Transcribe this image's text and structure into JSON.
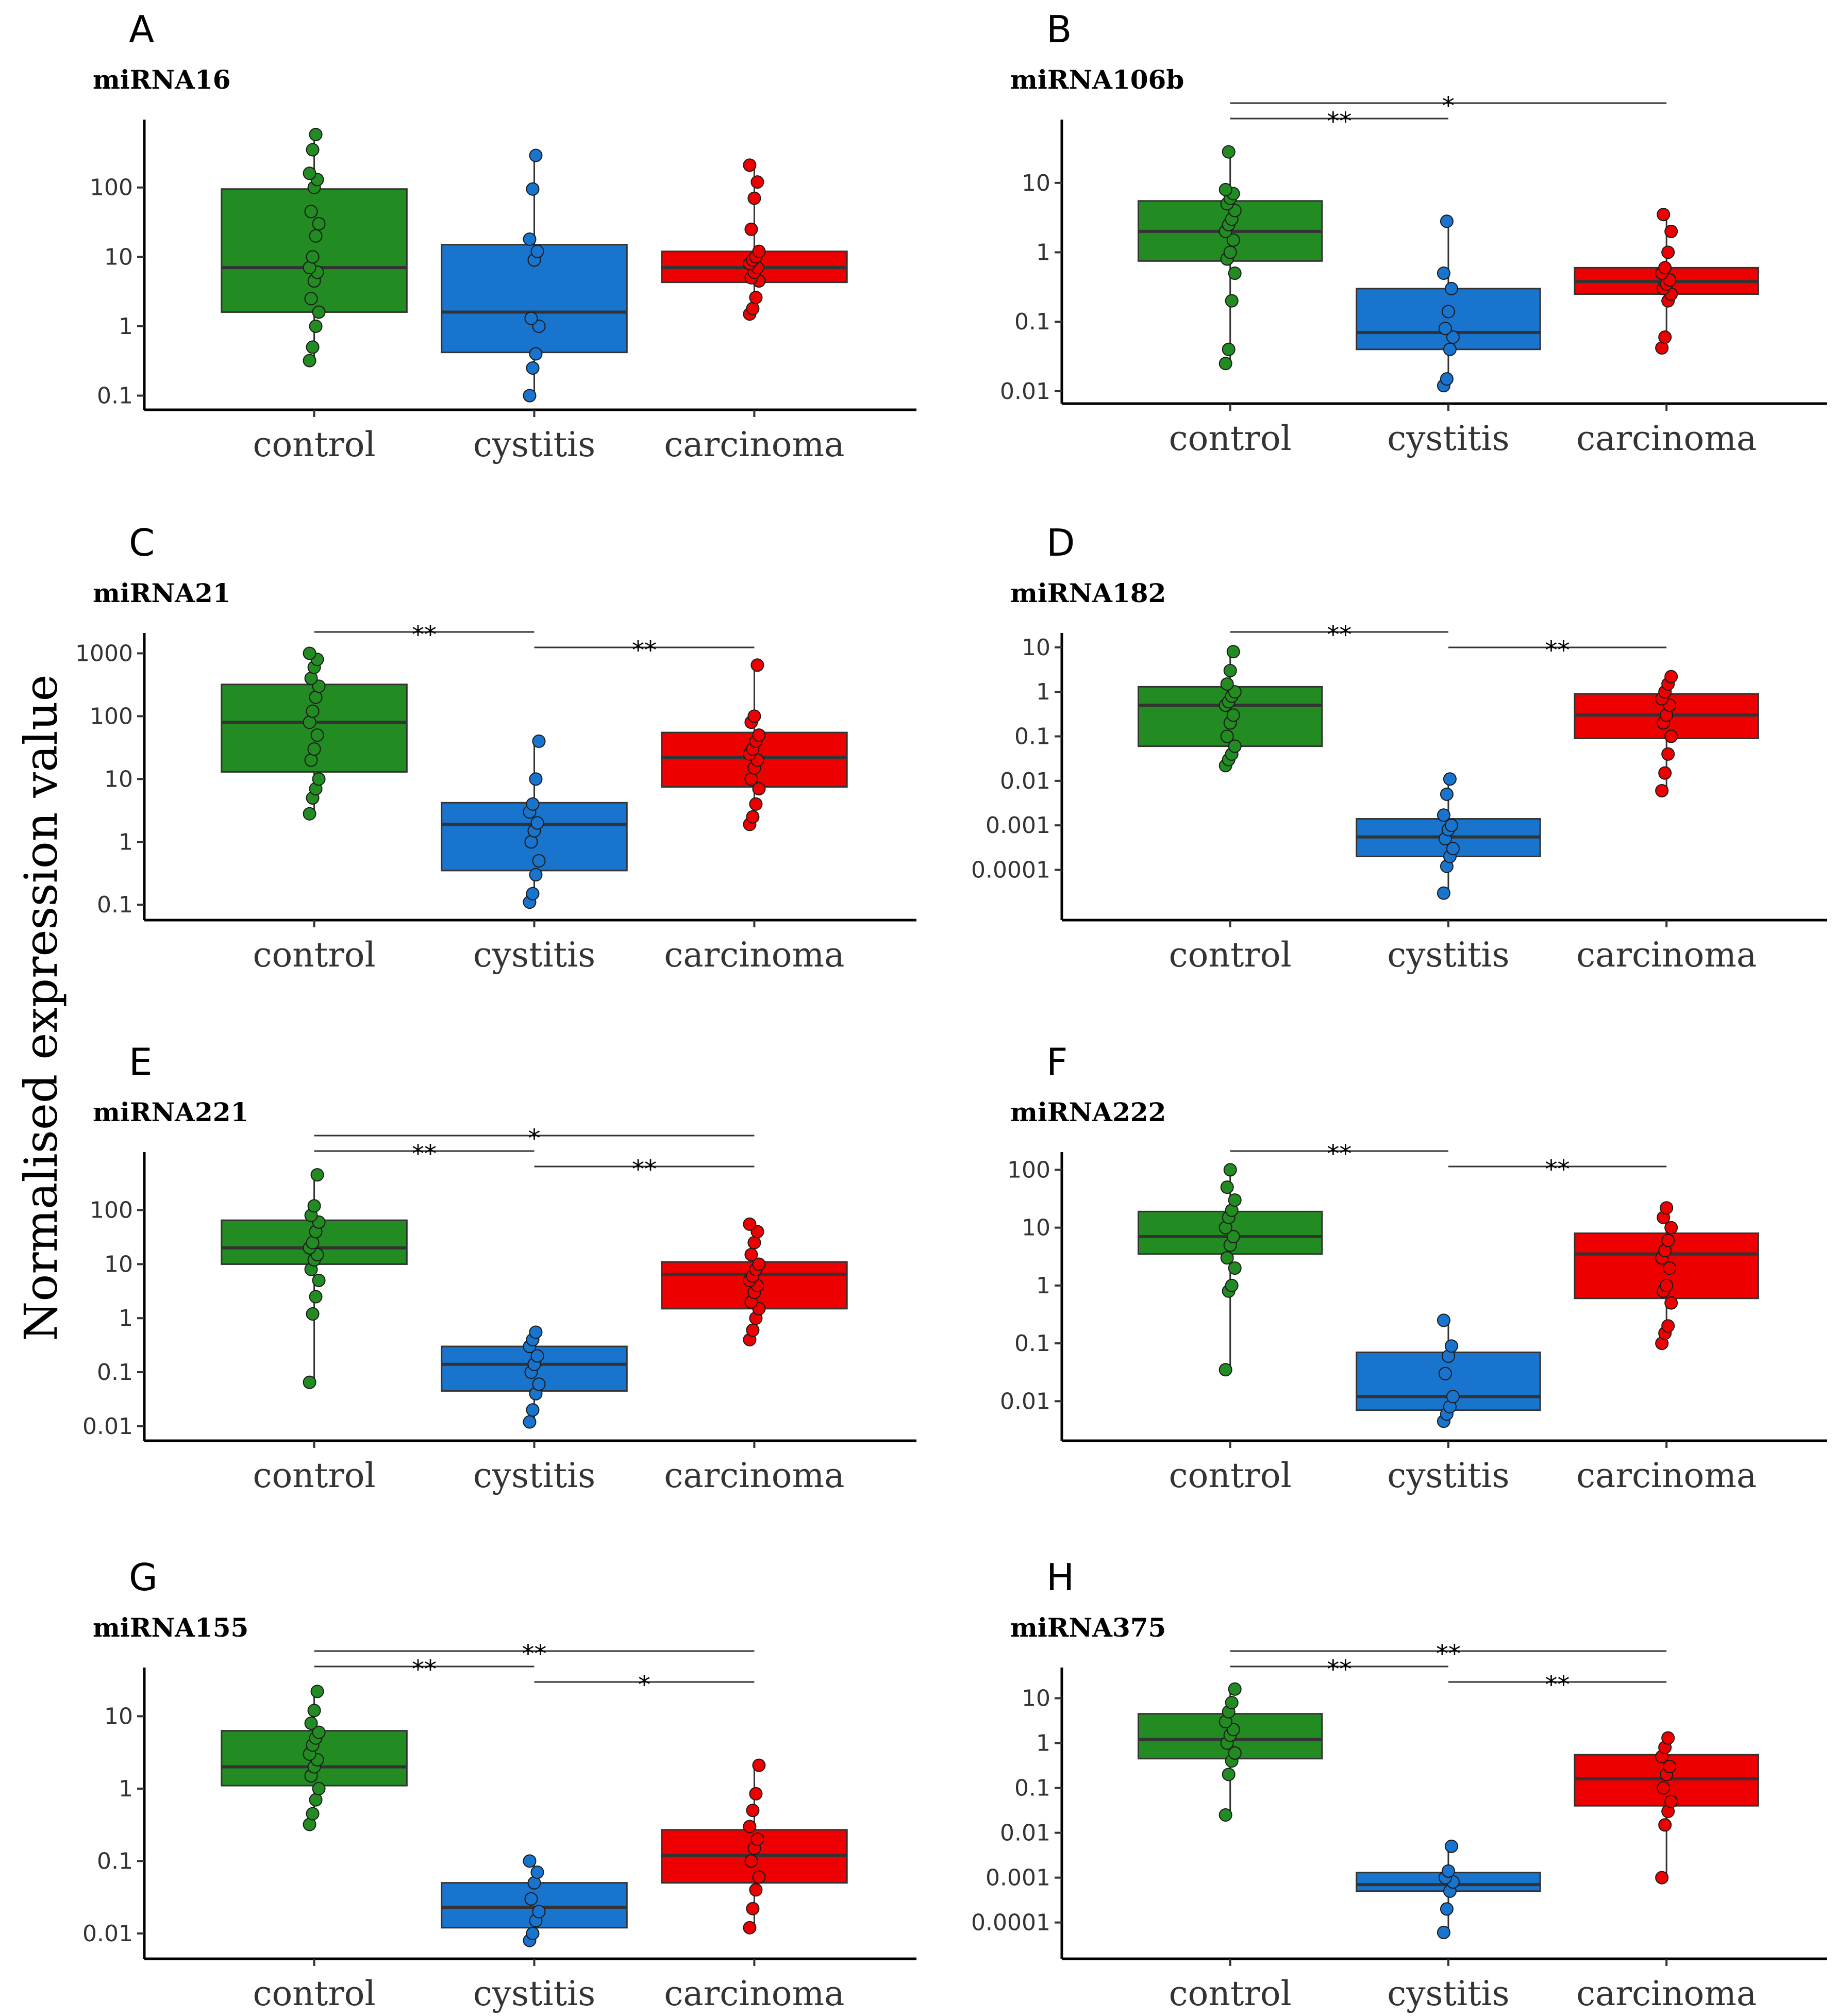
{
  "figure": {
    "ylabel": "Normalised expression value"
  },
  "colors": {
    "control": "#228B22",
    "cystitis": "#1874CD",
    "carcinoma": "#EE0000"
  },
  "chart_data": [
    {
      "panel": "A",
      "title": "miRNA16",
      "type": "box",
      "scale": "log10",
      "categories": [
        "control",
        "cystitis",
        "carcinoma"
      ],
      "yticks": [
        0.1,
        1,
        10,
        100
      ],
      "ytick_labels": [
        "0.1",
        "1",
        "10",
        "100"
      ],
      "yrange": [
        0.085,
        700
      ],
      "boxes": [
        {
          "q1": 1.6,
          "median": 7,
          "q3": 95,
          "min": 0.32,
          "max": 580
        },
        {
          "q1": 0.42,
          "median": 1.6,
          "q3": 15,
          "min": 0.1,
          "max": 290
        },
        {
          "q1": 4.3,
          "median": 7,
          "q3": 12,
          "min": 1.5,
          "max": 210
        }
      ],
      "points": [
        [
          0.32,
          0.5,
          1,
          1.6,
          2.5,
          4.5,
          6,
          7,
          10,
          20,
          30,
          45,
          100,
          130,
          160,
          350,
          580
        ],
        [
          0.1,
          0.25,
          0.4,
          1,
          1.3,
          9,
          12,
          18,
          95,
          290
        ],
        [
          1.5,
          1.8,
          2.6,
          4.5,
          5,
          6,
          7,
          8,
          9,
          10,
          12,
          25,
          70,
          120,
          210
        ]
      ],
      "sig": []
    },
    {
      "panel": "B",
      "title": "miRNA106b",
      "type": "box",
      "scale": "log10",
      "categories": [
        "control",
        "cystitis",
        "carcinoma"
      ],
      "yticks": [
        0.01,
        0.1,
        1,
        10
      ],
      "ytick_labels": [
        "0.01",
        "0.1",
        "1",
        "10"
      ],
      "yrange": [
        0.009,
        60
      ],
      "boxes": [
        {
          "q1": 0.75,
          "median": 2,
          "q3": 5.5,
          "min": 0.025,
          "max": 28
        },
        {
          "q1": 0.04,
          "median": 0.07,
          "q3": 0.3,
          "min": 0.012,
          "max": 2.8
        },
        {
          "q1": 0.25,
          "median": 0.38,
          "q3": 0.6,
          "min": 0.042,
          "max": 3.5
        }
      ],
      "points": [
        [
          0.025,
          0.04,
          0.2,
          0.5,
          0.8,
          1,
          1.5,
          2,
          2.5,
          3,
          4,
          5,
          6,
          7,
          8,
          28
        ],
        [
          0.012,
          0.015,
          0.04,
          0.06,
          0.08,
          0.14,
          0.3,
          0.5,
          2.8
        ],
        [
          0.042,
          0.06,
          0.2,
          0.25,
          0.3,
          0.35,
          0.4,
          0.5,
          0.6,
          1,
          2,
          3.5
        ]
      ],
      "sig": [
        {
          "from": 0,
          "to": 1,
          "label": "**",
          "level": 0
        },
        {
          "from": 0,
          "to": 2,
          "label": "*",
          "level": 1
        }
      ]
    },
    {
      "panel": "C",
      "title": "miRNA21",
      "type": "box",
      "scale": "log10",
      "categories": [
        "control",
        "cystitis",
        "carcinoma"
      ],
      "yticks": [
        0.1,
        1,
        10,
        100,
        1000
      ],
      "ytick_labels": [
        "0.1",
        "1",
        "10",
        "100",
        "1000"
      ],
      "yrange": [
        0.08,
        1500
      ],
      "boxes": [
        {
          "q1": 13,
          "median": 80,
          "q3": 320,
          "min": 2.8,
          "max": 1000
        },
        {
          "q1": 0.35,
          "median": 1.9,
          "q3": 4.2,
          "min": 0.11,
          "max": 40
        },
        {
          "q1": 7.5,
          "median": 22,
          "q3": 55,
          "min": 1.9,
          "max": 650
        }
      ],
      "points": [
        [
          2.8,
          5,
          7,
          10,
          20,
          30,
          50,
          80,
          120,
          200,
          300,
          400,
          600,
          800,
          1000
        ],
        [
          0.11,
          0.15,
          0.3,
          0.5,
          1,
          1.5,
          2,
          3,
          4,
          10,
          40
        ],
        [
          1.9,
          2.5,
          4,
          7,
          10,
          15,
          20,
          25,
          30,
          40,
          50,
          80,
          100,
          650
        ]
      ],
      "sig": [
        {
          "from": 0,
          "to": 1,
          "label": "**",
          "level": 0
        },
        {
          "from": 1,
          "to": 2,
          "label": "**",
          "level": -1
        }
      ]
    },
    {
      "panel": "D",
      "title": "miRNA182",
      "type": "box",
      "scale": "log10",
      "categories": [
        "control",
        "cystitis",
        "carcinoma"
      ],
      "yticks": [
        0.0001,
        0.001,
        0.01,
        0.1,
        1,
        10
      ],
      "ytick_labels": [
        "0.0001",
        "0.001",
        "0.01",
        "0.1",
        "1",
        "10"
      ],
      "yrange": [
        1.2e-05,
        13
      ],
      "boxes": [
        {
          "q1": 0.06,
          "median": 0.5,
          "q3": 1.3,
          "min": 0.022,
          "max": 8
        },
        {
          "q1": 0.0002,
          "median": 0.00055,
          "q3": 0.0014,
          "min": 3e-05,
          "max": 0.011
        },
        {
          "q1": 0.09,
          "median": 0.3,
          "q3": 0.9,
          "min": 0.006,
          "max": 2.2
        }
      ],
      "points": [
        [
          0.022,
          0.03,
          0.04,
          0.06,
          0.1,
          0.2,
          0.3,
          0.5,
          0.6,
          0.8,
          1,
          1.5,
          3,
          8
        ],
        [
          3e-05,
          0.00012,
          0.0002,
          0.0003,
          0.0005,
          0.0008,
          0.001,
          0.0017,
          0.005,
          0.011
        ],
        [
          0.006,
          0.015,
          0.04,
          0.1,
          0.2,
          0.3,
          0.5,
          0.7,
          1,
          1.5,
          2.2
        ]
      ],
      "sig": [
        {
          "from": 0,
          "to": 1,
          "label": "**",
          "level": 0
        },
        {
          "from": 1,
          "to": 2,
          "label": "**",
          "level": -1
        }
      ]
    },
    {
      "panel": "E",
      "title": "miRNA221",
      "type": "box",
      "scale": "log10",
      "categories": [
        "control",
        "cystitis",
        "carcinoma"
      ],
      "yticks": [
        0.01,
        0.1,
        1,
        10,
        100
      ],
      "ytick_labels": [
        "0.01",
        "0.1",
        "1",
        "10",
        "100"
      ],
      "yrange": [
        0.008,
        800
      ],
      "boxes": [
        {
          "q1": 10,
          "median": 20,
          "q3": 65,
          "min": 0.065,
          "max": 450
        },
        {
          "q1": 0.045,
          "median": 0.14,
          "q3": 0.3,
          "min": 0.012,
          "max": 0.55
        },
        {
          "q1": 1.5,
          "median": 6.5,
          "q3": 11,
          "min": 0.4,
          "max": 55
        }
      ],
      "points": [
        [
          0.065,
          1.2,
          2.5,
          5,
          8,
          12,
          15,
          20,
          25,
          40,
          60,
          80,
          120,
          450
        ],
        [
          0.012,
          0.02,
          0.04,
          0.06,
          0.1,
          0.14,
          0.2,
          0.3,
          0.4,
          0.55
        ],
        [
          0.4,
          0.6,
          1,
          1.5,
          2,
          3,
          4,
          5,
          6,
          8,
          10,
          15,
          25,
          40,
          55
        ]
      ],
      "sig": [
        {
          "from": 0,
          "to": 1,
          "label": "**",
          "level": 0
        },
        {
          "from": 0,
          "to": 2,
          "label": "*",
          "level": 1
        },
        {
          "from": 1,
          "to": 2,
          "label": "**",
          "level": -1
        }
      ]
    },
    {
      "panel": "F",
      "title": "miRNA222",
      "type": "box",
      "scale": "log10",
      "categories": [
        "control",
        "cystitis",
        "carcinoma"
      ],
      "yticks": [
        0.01,
        0.1,
        1,
        10,
        100
      ],
      "ytick_labels": [
        "0.01",
        "0.1",
        "1",
        "10",
        "100"
      ],
      "yrange": [
        0.003,
        140
      ],
      "boxes": [
        {
          "q1": 3.5,
          "median": 7,
          "q3": 19,
          "min": 0.035,
          "max": 100
        },
        {
          "q1": 0.007,
          "median": 0.012,
          "q3": 0.07,
          "min": 0.0045,
          "max": 0.25
        },
        {
          "q1": 0.6,
          "median": 3.5,
          "q3": 8,
          "min": 0.1,
          "max": 22
        }
      ],
      "points": [
        [
          0.035,
          0.8,
          1,
          2,
          3,
          5,
          7,
          10,
          15,
          20,
          30,
          50,
          100
        ],
        [
          0.0045,
          0.006,
          0.008,
          0.012,
          0.03,
          0.06,
          0.09,
          0.25
        ],
        [
          0.1,
          0.15,
          0.2,
          0.5,
          0.8,
          1,
          2,
          3,
          4,
          6,
          10,
          15,
          22
        ]
      ],
      "sig": [
        {
          "from": 0,
          "to": 1,
          "label": "**",
          "level": 0
        },
        {
          "from": 1,
          "to": 2,
          "label": "**",
          "level": -1
        }
      ]
    },
    {
      "panel": "G",
      "title": "miRNA155",
      "type": "box",
      "scale": "log10",
      "categories": [
        "control",
        "cystitis",
        "carcinoma"
      ],
      "yticks": [
        0.01,
        0.1,
        1,
        10
      ],
      "ytick_labels": [
        "0.01",
        "0.1",
        "1",
        "10"
      ],
      "yrange": [
        0.006,
        35
      ],
      "boxes": [
        {
          "q1": 1.1,
          "median": 2,
          "q3": 6.3,
          "min": 0.32,
          "max": 22
        },
        {
          "q1": 0.012,
          "median": 0.023,
          "q3": 0.05,
          "min": 0.008,
          "max": 0.1
        },
        {
          "q1": 0.05,
          "median": 0.12,
          "q3": 0.27,
          "min": 0.012,
          "max": 2.1
        }
      ],
      "points": [
        [
          0.32,
          0.45,
          0.7,
          1,
          1.5,
          2,
          2.5,
          3,
          4,
          5,
          6,
          8,
          12,
          22
        ],
        [
          0.008,
          0.01,
          0.015,
          0.02,
          0.03,
          0.05,
          0.07,
          0.1
        ],
        [
          0.012,
          0.022,
          0.04,
          0.06,
          0.1,
          0.15,
          0.2,
          0.3,
          0.5,
          0.85,
          2.1
        ]
      ],
      "sig": [
        {
          "from": 0,
          "to": 1,
          "label": "**",
          "level": 0
        },
        {
          "from": 0,
          "to": 2,
          "label": "**",
          "level": 1
        },
        {
          "from": 1,
          "to": 2,
          "label": "*",
          "level": -1
        }
      ]
    },
    {
      "panel": "H",
      "title": "miRNA375",
      "type": "box",
      "scale": "log10",
      "categories": [
        "control",
        "cystitis",
        "carcinoma"
      ],
      "yticks": [
        0.0001,
        0.001,
        0.01,
        0.1,
        1,
        10
      ],
      "ytick_labels": [
        "0.0001",
        "0.001",
        "0.01",
        "0.1",
        "1",
        "10"
      ],
      "yrange": [
        2.5e-05,
        30
      ],
      "boxes": [
        {
          "q1": 0.45,
          "median": 1.2,
          "q3": 4.5,
          "min": 0.025,
          "max": 16
        },
        {
          "q1": 0.0005,
          "median": 0.0007,
          "q3": 0.0013,
          "min": 6e-05,
          "max": 0.005
        },
        {
          "q1": 0.04,
          "median": 0.16,
          "q3": 0.55,
          "min": 0.001,
          "max": 1.3
        }
      ],
      "points": [
        [
          0.025,
          0.2,
          0.4,
          0.6,
          1,
          1.5,
          2,
          3,
          5,
          8,
          16
        ],
        [
          6e-05,
          0.0002,
          0.0005,
          0.0008,
          0.001,
          0.0014,
          0.005
        ],
        [
          0.001,
          0.015,
          0.03,
          0.05,
          0.1,
          0.2,
          0.3,
          0.5,
          0.8,
          1.3
        ]
      ],
      "sig": [
        {
          "from": 0,
          "to": 1,
          "label": "**",
          "level": 0
        },
        {
          "from": 0,
          "to": 2,
          "label": "**",
          "level": 1
        },
        {
          "from": 1,
          "to": 2,
          "label": "**",
          "level": -1
        }
      ]
    }
  ]
}
